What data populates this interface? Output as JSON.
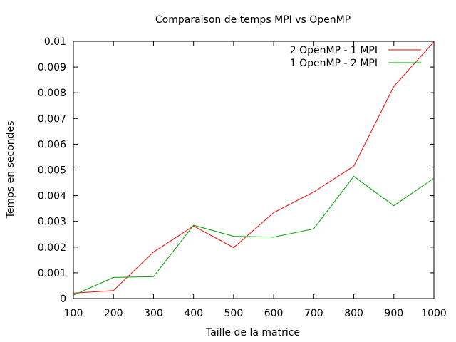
{
  "chart_data": {
    "type": "line",
    "title": "Comparaison de temps MPI vs OpenMP",
    "xlabel": "Taille de la matrice",
    "ylabel": "Temps en secondes",
    "x": [
      100,
      200,
      300,
      400,
      500,
      600,
      700,
      800,
      900,
      1000
    ],
    "xlim": [
      100,
      1000
    ],
    "ylim": [
      0,
      0.01
    ],
    "xticks": [
      "100",
      "200",
      "300",
      "400",
      "500",
      "600",
      "700",
      "800",
      "900",
      "1000"
    ],
    "yticks": [
      "0",
      "0.001",
      "0.002",
      "0.003",
      "0.004",
      "0.005",
      "0.006",
      "0.007",
      "0.008",
      "0.009",
      "0.01"
    ],
    "grid": false,
    "legend_position": "top-right",
    "series": [
      {
        "name": "2 OpenMP - 1 MPI",
        "color": "#ff0000",
        "values": [
          0.00021,
          0.00031,
          0.00181,
          0.00282,
          0.00198,
          0.00334,
          0.00414,
          0.00515,
          0.00825,
          0.00998
        ]
      },
      {
        "name": "1 OpenMP - 2 MPI",
        "color": "#00a000",
        "values": [
          0.00013,
          0.00082,
          0.00085,
          0.00285,
          0.00242,
          0.00239,
          0.00271,
          0.00475,
          0.00361,
          0.00468
        ]
      }
    ]
  }
}
